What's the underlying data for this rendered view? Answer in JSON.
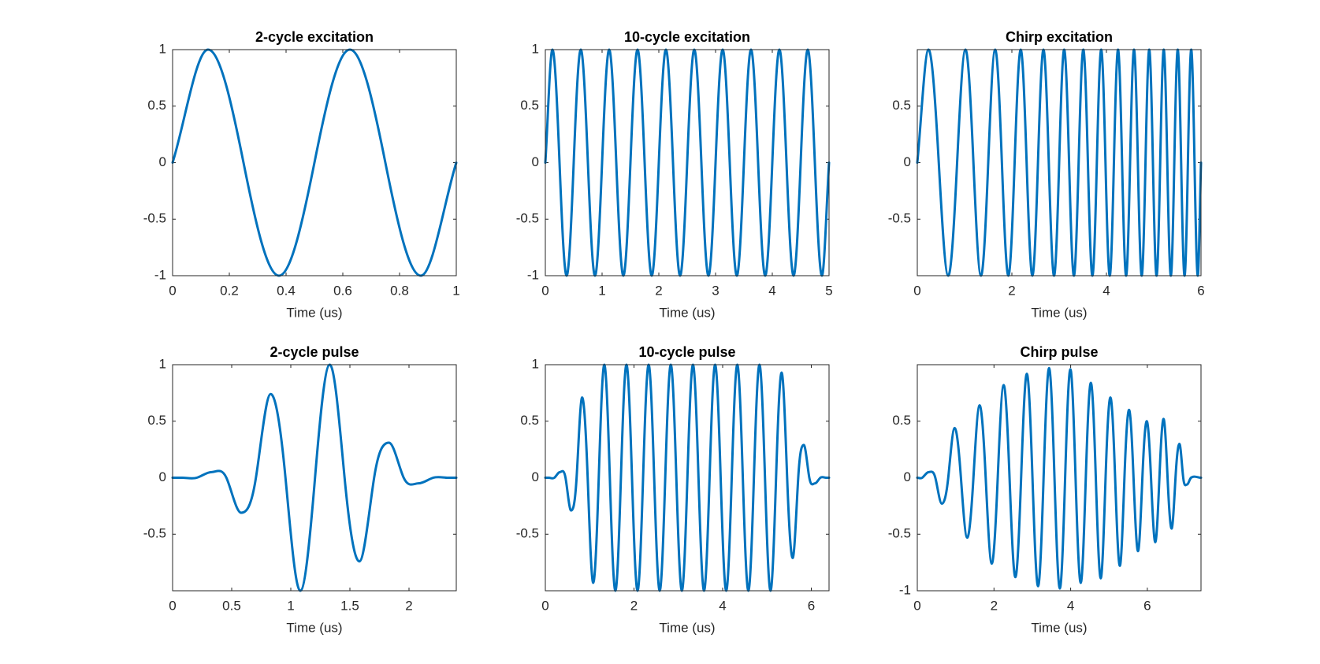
{
  "chart_data": [
    {
      "type": "line",
      "title": "2-cycle excitation",
      "xlabel": "Time (us)",
      "color": "#0072bd",
      "x": [
        0,
        0.125,
        0.25,
        0.375,
        0.5,
        0.625,
        0.75,
        0.875,
        1
      ],
      "values": [
        0,
        1,
        0,
        -1,
        0,
        1,
        0,
        -1,
        0
      ],
      "xlim": [
        0,
        1
      ],
      "ylim": [
        -1,
        1
      ],
      "xticks": [
        0,
        0.2,
        0.4,
        0.6,
        0.8,
        1
      ],
      "yticks": [
        -1,
        -0.5,
        0,
        0.5,
        1
      ]
    },
    {
      "type": "line",
      "title": "10-cycle excitation",
      "xlabel": "Time (us)",
      "color": "#0072bd",
      "x": [
        0,
        0.125,
        0.25,
        0.375,
        0.5,
        0.625,
        0.75,
        0.875,
        1,
        1.125,
        1.25,
        1.375,
        1.5,
        1.625,
        1.75,
        1.875,
        2,
        2.125,
        2.25,
        2.375,
        2.5,
        2.625,
        2.75,
        2.875,
        3,
        3.125,
        3.25,
        3.375,
        3.5,
        3.625,
        3.75,
        3.875,
        4,
        4.125,
        4.25,
        4.375,
        4.5,
        4.625,
        4.75,
        4.875,
        5
      ],
      "values": [
        0,
        1,
        0,
        -1,
        0,
        1,
        0,
        -1,
        0,
        1,
        0,
        -1,
        0,
        1,
        0,
        -1,
        0,
        1,
        0,
        -1,
        0,
        1,
        0,
        -1,
        0,
        1,
        0,
        -1,
        0,
        1,
        0,
        -1,
        0,
        1,
        0,
        -1,
        0,
        1,
        0,
        -1,
        0
      ],
      "xlim": [
        0,
        5
      ],
      "ylim": [
        -1,
        1
      ],
      "xticks": [
        0,
        1,
        2,
        3,
        4,
        5
      ],
      "yticks": [
        -1,
        -0.5,
        0,
        0.5,
        1
      ]
    },
    {
      "type": "line",
      "title": "Chirp excitation",
      "xlabel": "Time (us)",
      "color": "#0072bd",
      "x": [
        0,
        0.237,
        0.454,
        0.655,
        0.842,
        1.019,
        1.187,
        1.347,
        1.5,
        1.647,
        1.789,
        1.926,
        2.058,
        2.187,
        2.312,
        2.434,
        2.552,
        2.668,
        2.781,
        2.892,
        3,
        3.106,
        3.21,
        3.312,
        3.412,
        3.511,
        3.608,
        3.703,
        3.797,
        3.889,
        3.98,
        4.07,
        4.158,
        4.245,
        4.331,
        4.416,
        4.5,
        4.583,
        4.665,
        4.746,
        4.826,
        4.905,
        4.983,
        5.06,
        5.137,
        5.212,
        5.287,
        5.362,
        5.435,
        5.508,
        5.58,
        5.652,
        5.723,
        5.793,
        5.863,
        5.932,
        6
      ],
      "values": [
        0,
        1,
        0,
        -1,
        0,
        1,
        0,
        -1,
        0,
        1,
        0,
        -1,
        0,
        1,
        0,
        -1,
        0,
        1,
        0,
        -1,
        0,
        1,
        0,
        -1,
        0,
        1,
        0,
        -1,
        0,
        1,
        0,
        -1,
        0,
        1,
        0,
        -1,
        0,
        1,
        0,
        -1,
        0,
        1,
        0,
        -1,
        0,
        1,
        0,
        -1,
        0,
        1,
        0,
        -1,
        0,
        1,
        0,
        -1,
        0
      ],
      "xlim": [
        0,
        6
      ],
      "ylim": [
        -1,
        1
      ],
      "xticks": [
        0,
        2,
        4,
        6
      ],
      "yticks": [
        -0.5,
        0,
        0.5
      ]
    },
    {
      "type": "line",
      "title": "2-cycle pulse",
      "xlabel": "Time (us)",
      "color": "#0072bd",
      "x": [
        0,
        0.08,
        0.205,
        0.33,
        0.455,
        0.58,
        0.705,
        0.83,
        0.955,
        1.08,
        1.205,
        1.33,
        1.455,
        1.58,
        1.705,
        1.83,
        1.955,
        2.08,
        2.205,
        2.33,
        2.4
      ],
      "values": [
        0,
        0,
        0,
        0.05,
        0,
        -0.31,
        0,
        0.74,
        0,
        -1,
        0,
        1,
        0,
        -0.74,
        0,
        0.31,
        0,
        -0.05,
        0,
        0,
        0
      ],
      "xlim": [
        0,
        2.4
      ],
      "ylim": [
        -1,
        1
      ],
      "xticks": [
        0,
        0.5,
        1,
        1.5,
        2
      ],
      "yticks": [
        -0.5,
        0,
        0.5,
        1
      ]
    },
    {
      "type": "line",
      "title": "10-cycle pulse",
      "xlabel": "Time (us)",
      "color": "#0072bd",
      "x": [
        0,
        0.08,
        0.205,
        0.33,
        0.455,
        0.58,
        0.705,
        0.83,
        0.955,
        1.08,
        1.205,
        1.33,
        1.455,
        1.58,
        1.705,
        1.83,
        1.955,
        2.08,
        2.205,
        2.33,
        2.455,
        2.58,
        2.705,
        2.83,
        2.955,
        3.08,
        3.205,
        3.33,
        3.455,
        3.58,
        3.705,
        3.83,
        3.955,
        4.08,
        4.205,
        4.33,
        4.455,
        4.58,
        4.705,
        4.83,
        4.955,
        5.08,
        5.205,
        5.33,
        5.455,
        5.58,
        5.705,
        5.83,
        5.955,
        6.08,
        6.205,
        6.33,
        6.4
      ],
      "values": [
        0,
        0,
        0,
        0.05,
        0,
        -0.29,
        0,
        0.71,
        0,
        -0.93,
        0,
        1,
        0,
        -1,
        0,
        1,
        0,
        -1,
        0,
        1,
        0,
        -1,
        0,
        1,
        0,
        -1,
        0,
        1,
        0,
        -1,
        0,
        1,
        0,
        -1,
        0,
        1,
        0,
        -1,
        0,
        1,
        0,
        -1,
        0,
        0.93,
        0,
        -0.71,
        0,
        0.29,
        0,
        -0.05,
        0,
        0,
        0
      ],
      "xlim": [
        0,
        6.4
      ],
      "ylim": [
        -1,
        1
      ],
      "xticks": [
        0,
        2,
        4,
        6
      ],
      "yticks": [
        -0.5,
        0,
        0.5,
        1
      ]
    },
    {
      "type": "line",
      "title": "Chirp pulse",
      "xlabel": "Time (us)",
      "color": "#0072bd",
      "x": [
        0,
        0.13,
        0.3,
        0.47,
        0.64,
        0.807,
        0.974,
        1.138,
        1.302,
        1.464,
        1.625,
        1.784,
        1.942,
        2.098,
        2.253,
        2.406,
        2.558,
        2.708,
        2.857,
        3.004,
        3.15,
        3.294,
        3.437,
        3.578,
        3.718,
        3.856,
        3.993,
        4.128,
        4.263,
        4.395,
        4.527,
        4.656,
        4.785,
        4.911,
        5.037,
        5.16,
        5.283,
        5.403,
        5.523,
        5.64,
        5.757,
        5.871,
        5.985,
        6.096,
        6.207,
        6.315,
        6.423,
        6.528,
        6.633,
        6.735,
        6.837,
        6.936,
        7.035,
        7.14,
        7.4
      ],
      "values": [
        0,
        0,
        0.05,
        0,
        -0.23,
        0,
        0.44,
        0,
        -0.53,
        0,
        0.64,
        0,
        -0.76,
        0,
        0.82,
        0,
        -0.88,
        0,
        0.92,
        0,
        -0.96,
        0,
        0.97,
        0,
        -0.98,
        0,
        0.96,
        0,
        -0.93,
        0,
        0.84,
        0,
        -0.89,
        0,
        0.71,
        0,
        -0.78,
        0,
        0.6,
        0,
        -0.65,
        0,
        0.5,
        0,
        -0.57,
        0,
        0.52,
        0,
        -0.45,
        0,
        0.3,
        0,
        -0.06,
        0,
        0
      ],
      "xlim": [
        0,
        7.4
      ],
      "ylim": [
        -1,
        1
      ],
      "xticks": [
        0,
        2,
        4,
        6
      ],
      "yticks": [
        -1,
        -0.5,
        0,
        0.5
      ]
    }
  ]
}
